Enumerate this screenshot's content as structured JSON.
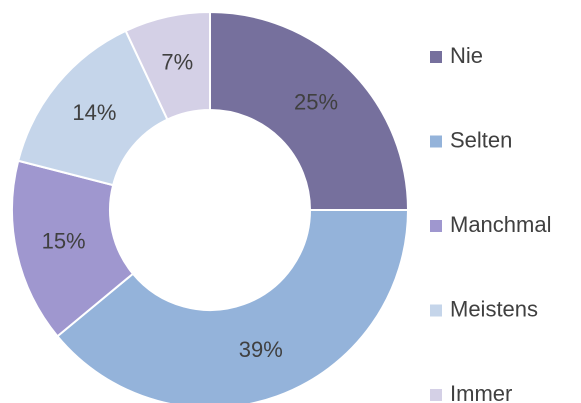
{
  "chart_data": {
    "type": "donut",
    "categories": [
      "Nie",
      "Selten",
      "Manchmal",
      "Meistens",
      "Immer"
    ],
    "values": [
      25,
      39,
      15,
      14,
      7
    ],
    "value_labels": [
      "25%",
      "39%",
      "15%",
      "14%",
      "7%"
    ],
    "colors": [
      "#76709d",
      "#94b3da",
      "#9f97cf",
      "#c5d5ea",
      "#d4d0e6"
    ],
    "legend": "right"
  }
}
